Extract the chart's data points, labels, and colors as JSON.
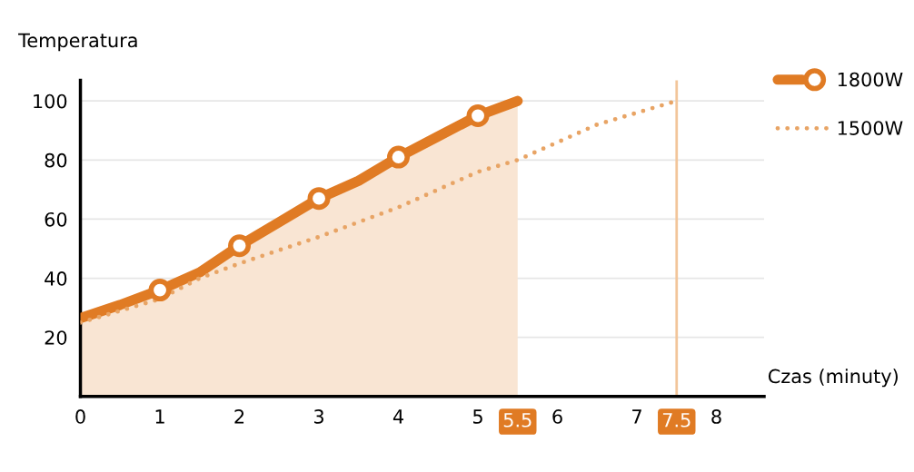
{
  "chart_data": {
    "type": "line",
    "ylabel": "Temperatura",
    "xlabel": "Czas (minuty)",
    "xlim": [
      0,
      8.6
    ],
    "ylim": [
      0,
      107
    ],
    "xticks": [
      0,
      1,
      2,
      3,
      4,
      5,
      6,
      7,
      8
    ],
    "yticks": [
      20,
      40,
      60,
      80,
      100
    ],
    "grid": "y",
    "legend": "top right",
    "series": [
      {
        "name": "1800W",
        "type": "area",
        "color": "#e07b24",
        "line_style": "solid",
        "x": [
          0,
          0.5,
          1,
          1.5,
          2,
          2.5,
          3,
          3.5,
          4,
          4.5,
          5,
          5.5
        ],
        "values": [
          26.5,
          31,
          36,
          42,
          51,
          59,
          67,
          73,
          81,
          88,
          95,
          100
        ]
      },
      {
        "type": "scatter",
        "color": "#e07b24",
        "marker": "circle",
        "x": [
          1,
          2,
          3,
          4,
          5
        ],
        "values": [
          36,
          51,
          67,
          81,
          95
        ]
      },
      {
        "name": "1500W",
        "color": "#e8a465",
        "marker": "none",
        "line_style": "dotted",
        "x": [
          0,
          1,
          1.5,
          2,
          3,
          4,
          5,
          5.5,
          6,
          6.5,
          7,
          7.5
        ],
        "values": [
          25,
          33,
          40,
          45,
          54,
          64,
          76,
          80,
          86,
          92,
          96,
          100
        ]
      }
    ],
    "ref_lines": [
      {
        "axis": "x",
        "value": 7.5,
        "color": "#f2c59a"
      }
    ],
    "annotations": [
      {
        "text": "5.5",
        "x": 5.5,
        "y": 0
      },
      {
        "text": "7.5",
        "x": 7.5,
        "y": 0
      }
    ]
  }
}
